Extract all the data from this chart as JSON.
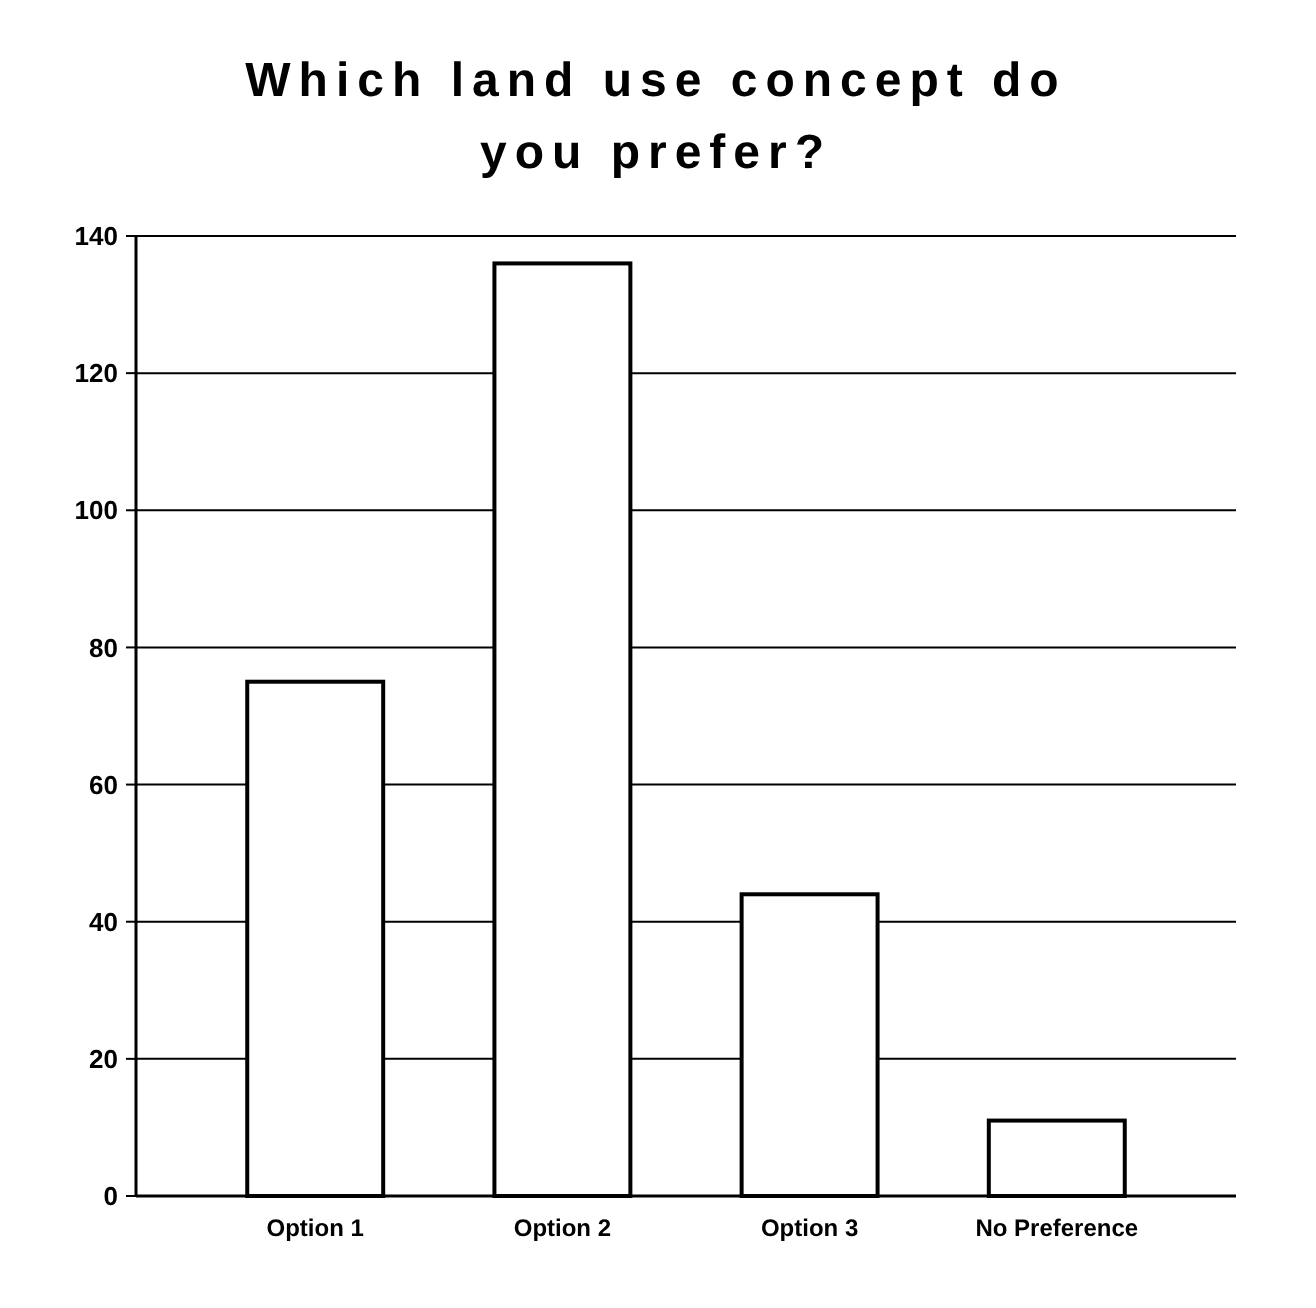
{
  "chart_data": {
    "type": "bar",
    "title": "Which land use concept do you prefer?",
    "categories": [
      "Option 1",
      "Option 2",
      "Option 3",
      "No Preference"
    ],
    "values": [
      75,
      136,
      44,
      11
    ],
    "color": "#ffffff",
    "ylim": [
      0,
      140
    ],
    "yticks": [
      0,
      20,
      40,
      60,
      80,
      100,
      120,
      140
    ],
    "grid": "y"
  }
}
